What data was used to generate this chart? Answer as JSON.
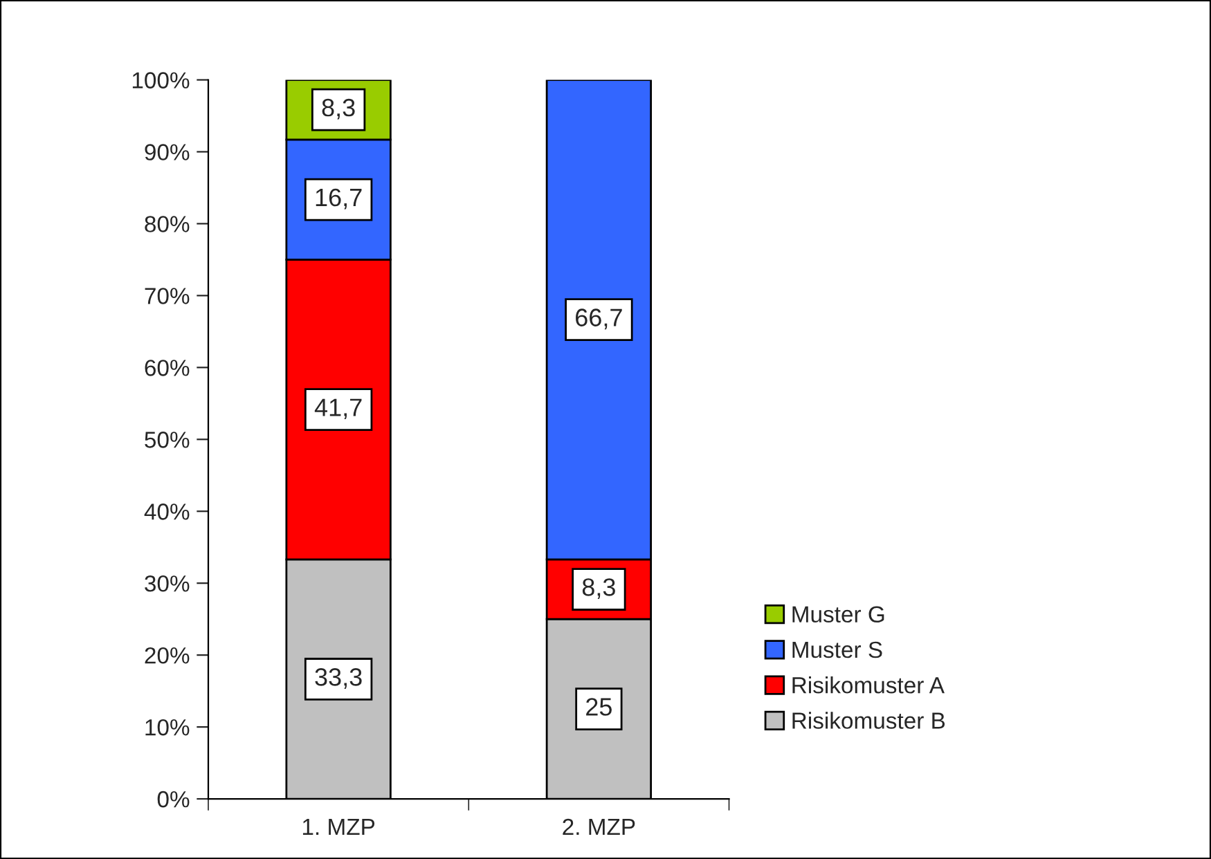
{
  "chart_data": {
    "type": "bar",
    "stacked": true,
    "categories": [
      "1. MZP",
      "2. MZP"
    ],
    "series": [
      {
        "name": "Risikomuster B",
        "color": "#c0c0c0",
        "values": [
          33.3,
          25
        ],
        "value_labels": [
          "33,3",
          "25"
        ]
      },
      {
        "name": "Risikomuster A",
        "color": "#ff0000",
        "values": [
          41.7,
          8.3
        ],
        "value_labels": [
          "41,7",
          "8,3"
        ]
      },
      {
        "name": "Muster S",
        "color": "#3366ff",
        "values": [
          16.7,
          66.7
        ],
        "value_labels": [
          "16,7",
          "66,7"
        ]
      },
      {
        "name": "Muster G",
        "color": "#99cc00",
        "values": [
          8.3,
          null
        ],
        "value_labels": [
          "8,3",
          null
        ]
      }
    ],
    "ylim": [
      0,
      100
    ],
    "yticks": [
      {
        "value": 0,
        "label": "0%"
      },
      {
        "value": 10,
        "label": "10%"
      },
      {
        "value": 20,
        "label": "20%"
      },
      {
        "value": 30,
        "label": "30%"
      },
      {
        "value": 40,
        "label": "40%"
      },
      {
        "value": 50,
        "label": "50%"
      },
      {
        "value": 60,
        "label": "60%"
      },
      {
        "value": 70,
        "label": "70%"
      },
      {
        "value": 80,
        "label": "80%"
      },
      {
        "value": 90,
        "label": "90%"
      },
      {
        "value": 100,
        "label": "100%"
      }
    ],
    "legend": "right",
    "grid": false
  }
}
